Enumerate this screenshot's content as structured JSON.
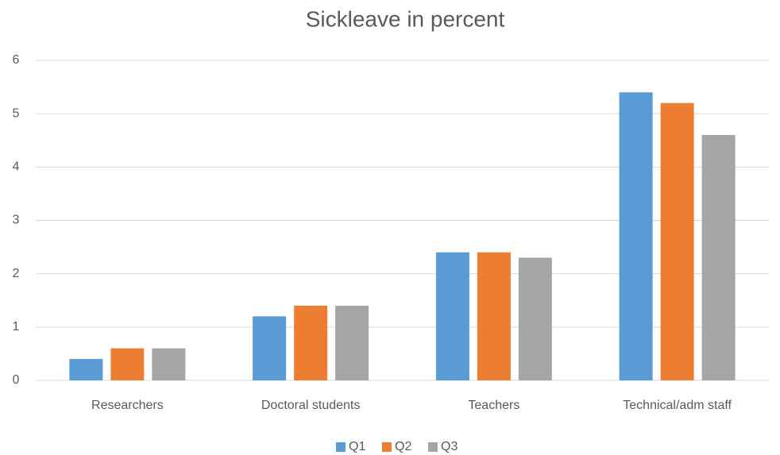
{
  "chart_data": {
    "type": "bar",
    "title": "Sickleave in percent",
    "categories": [
      "Researchers",
      "Doctoral students",
      "Teachers",
      "Technical/adm staff"
    ],
    "series": [
      {
        "name": "Q1",
        "color": "#5b9bd5",
        "values": [
          0.4,
          1.2,
          2.4,
          5.4
        ]
      },
      {
        "name": "Q2",
        "color": "#ed7d31",
        "values": [
          0.6,
          1.4,
          2.4,
          5.2
        ]
      },
      {
        "name": "Q3",
        "color": "#a5a5a5",
        "values": [
          0.6,
          1.4,
          2.3,
          4.6
        ]
      }
    ],
    "ylim": [
      0,
      6
    ],
    "yticks": [
      0,
      1,
      2,
      3,
      4,
      5,
      6
    ],
    "grid": true,
    "legend": "bottom"
  }
}
